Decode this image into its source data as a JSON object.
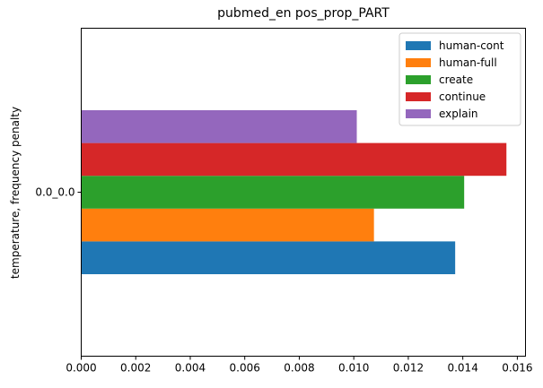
{
  "chart_data": {
    "type": "bar",
    "orientation": "horizontal",
    "title": "pubmed_en pos_prop_PART",
    "ylabel": "temperature, frequency penalty",
    "xlabel": "",
    "categories": [
      "0.0_0.0"
    ],
    "xlim": [
      0,
      0.0163
    ],
    "x_ticks": [
      "0.000",
      "0.002",
      "0.004",
      "0.006",
      "0.008",
      "0.010",
      "0.012",
      "0.014",
      "0.016"
    ],
    "grid": false,
    "legend_position": "top-right",
    "series": [
      {
        "name": "human-cont",
        "color": "#1f77b4",
        "values": [
          0.01372
        ]
      },
      {
        "name": "human-full",
        "color": "#ff7f0e",
        "values": [
          0.01074
        ]
      },
      {
        "name": "create",
        "color": "#2ca02c",
        "values": [
          0.01405
        ]
      },
      {
        "name": "continue",
        "color": "#d62728",
        "values": [
          0.0156
        ]
      },
      {
        "name": "explain",
        "color": "#9467bd",
        "values": [
          0.01011
        ]
      }
    ]
  }
}
